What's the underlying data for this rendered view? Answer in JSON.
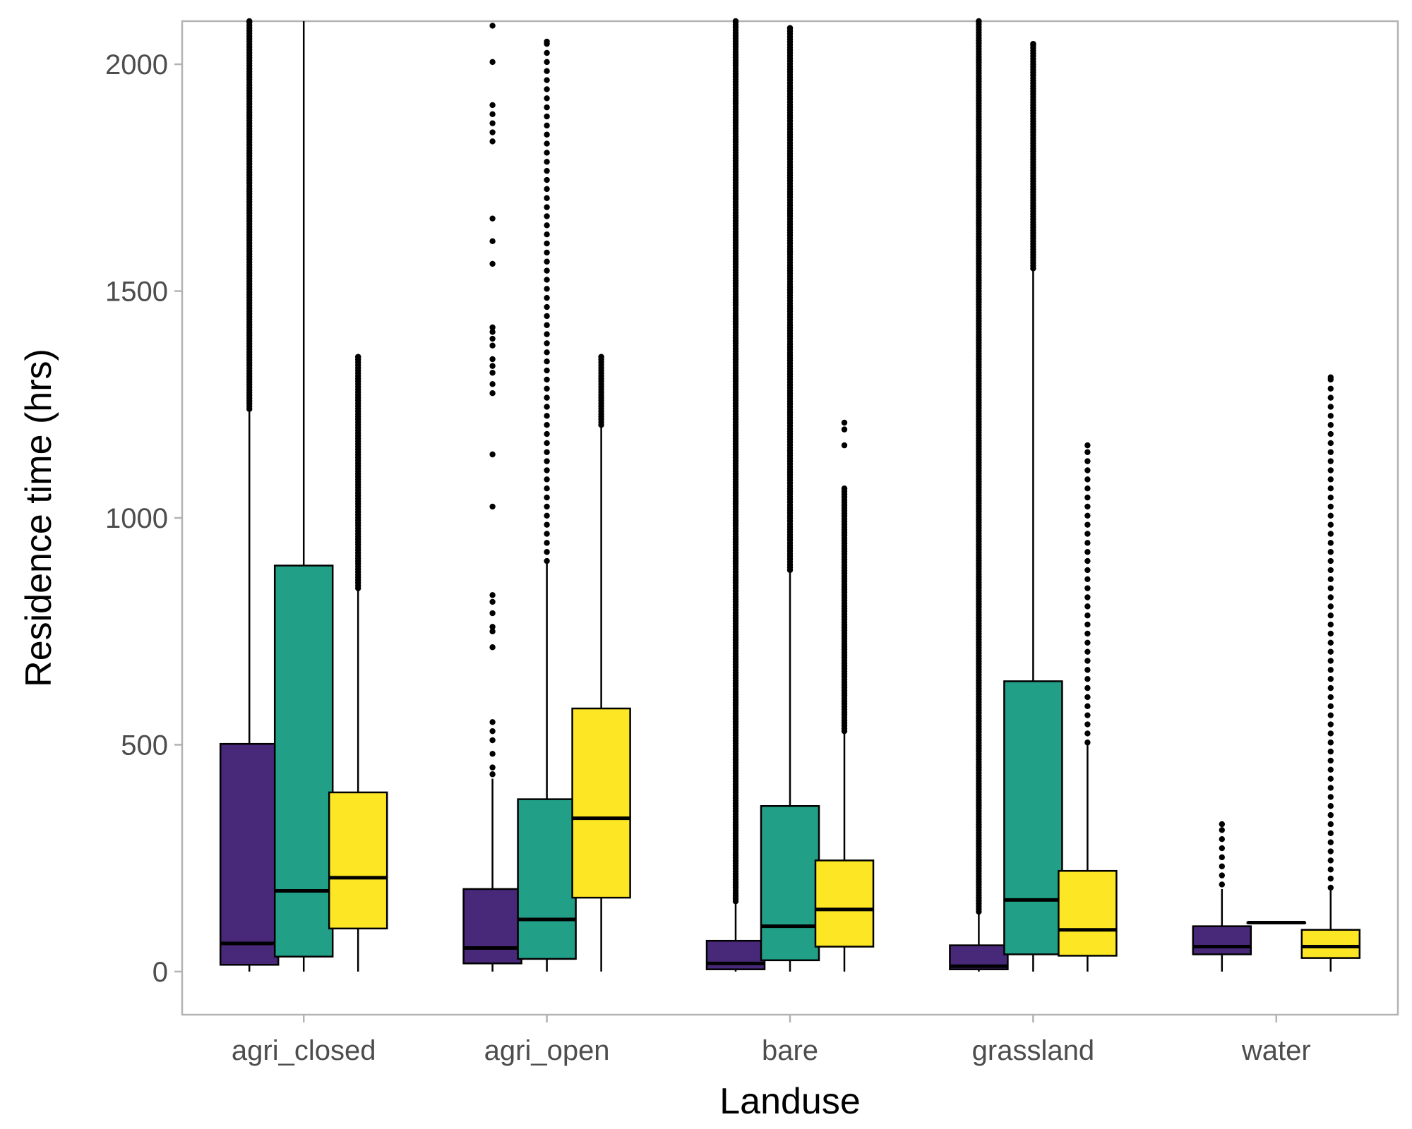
{
  "chart_data": {
    "type": "box",
    "xlabel": "Landuse",
    "ylabel": "Residence time (hrs)",
    "ylim": [
      -95,
      2095
    ],
    "yticks": [
      0,
      500,
      1000,
      1500,
      2000
    ],
    "categories": [
      "agri_closed",
      "agri_open",
      "bare",
      "grassland",
      "water"
    ],
    "series": [
      {
        "color": "#482878",
        "boxes": [
          {
            "q1": 15,
            "median": 62,
            "q3": 502,
            "whisker_low": 0,
            "whisker_high": 1235,
            "outlier_min": 1240,
            "outlier_max": 2095,
            "dense": true
          },
          {
            "q1": 18,
            "median": 52,
            "q3": 182,
            "whisker_low": 0,
            "whisker_high": 425,
            "outliers": [
              435,
              450,
              480,
              510,
              530,
              550,
              715,
              750,
              760,
              790,
              815,
              830,
              1025,
              1140,
              1275,
              1295,
              1320,
              1335,
              1350,
              1380,
              1395,
              1410,
              1420,
              1560,
              1610,
              1660,
              1830,
              1850,
              1870,
              1890,
              1910,
              2005,
              2085
            ]
          },
          {
            "q1": 5,
            "median": 18,
            "q3": 68,
            "whisker_low": 0,
            "whisker_high": 150,
            "outlier_min": 155,
            "outlier_max": 2095,
            "dense": true
          },
          {
            "q1": 5,
            "median": 12,
            "q3": 58,
            "whisker_low": 0,
            "whisker_high": 128,
            "outlier_min": 132,
            "outlier_max": 2095,
            "dense": true
          },
          {
            "q1": 38,
            "median": 55,
            "q3": 100,
            "whisker_low": 0,
            "whisker_high": 182,
            "outlier_min": 192,
            "outlier_max": 325,
            "dense": false
          }
        ]
      },
      {
        "color": "#21A087",
        "boxes": [
          {
            "q1": 33,
            "median": 178,
            "q3": 895,
            "whisker_low": 0,
            "whisker_high": 2095
          },
          {
            "q1": 28,
            "median": 115,
            "q3": 380,
            "whisker_low": 0,
            "whisker_high": 900,
            "outlier_min": 905,
            "outlier_max": 2050,
            "dense": false
          },
          {
            "q1": 25,
            "median": 100,
            "q3": 365,
            "whisker_low": 0,
            "whisker_high": 880,
            "outlier_min": 885,
            "outlier_max": 2080,
            "dense": true
          },
          {
            "q1": 38,
            "median": 158,
            "q3": 640,
            "whisker_low": 0,
            "whisker_high": 1545,
            "outlier_min": 1550,
            "outlier_max": 2045,
            "dense": true
          },
          {
            "q1": 108,
            "median": 108,
            "q3": 108,
            "whisker_low": 108,
            "whisker_high": 108
          }
        ]
      },
      {
        "color": "#FDE725",
        "boxes": [
          {
            "q1": 95,
            "median": 207,
            "q3": 395,
            "whisker_low": 0,
            "whisker_high": 840,
            "outlier_min": 845,
            "outlier_max": 1355,
            "dense": true
          },
          {
            "q1": 163,
            "median": 338,
            "q3": 580,
            "whisker_low": 0,
            "whisker_high": 1200,
            "outlier_min": 1205,
            "outlier_max": 1355,
            "dense": true
          },
          {
            "q1": 55,
            "median": 137,
            "q3": 245,
            "whisker_low": 0,
            "whisker_high": 525,
            "outlier_min": 530,
            "outlier_max": 1065,
            "dense": true,
            "outliers": [
              1160,
              1195,
              1210
            ]
          },
          {
            "q1": 35,
            "median": 92,
            "q3": 222,
            "whisker_low": 0,
            "whisker_high": 500,
            "outlier_min": 505,
            "outlier_max": 1160,
            "dense": false
          },
          {
            "q1": 30,
            "median": 55,
            "q3": 92,
            "whisker_low": 0,
            "whisker_high": 180,
            "outlier_min": 185,
            "outlier_max": 1310,
            "dense": false
          }
        ]
      }
    ]
  }
}
